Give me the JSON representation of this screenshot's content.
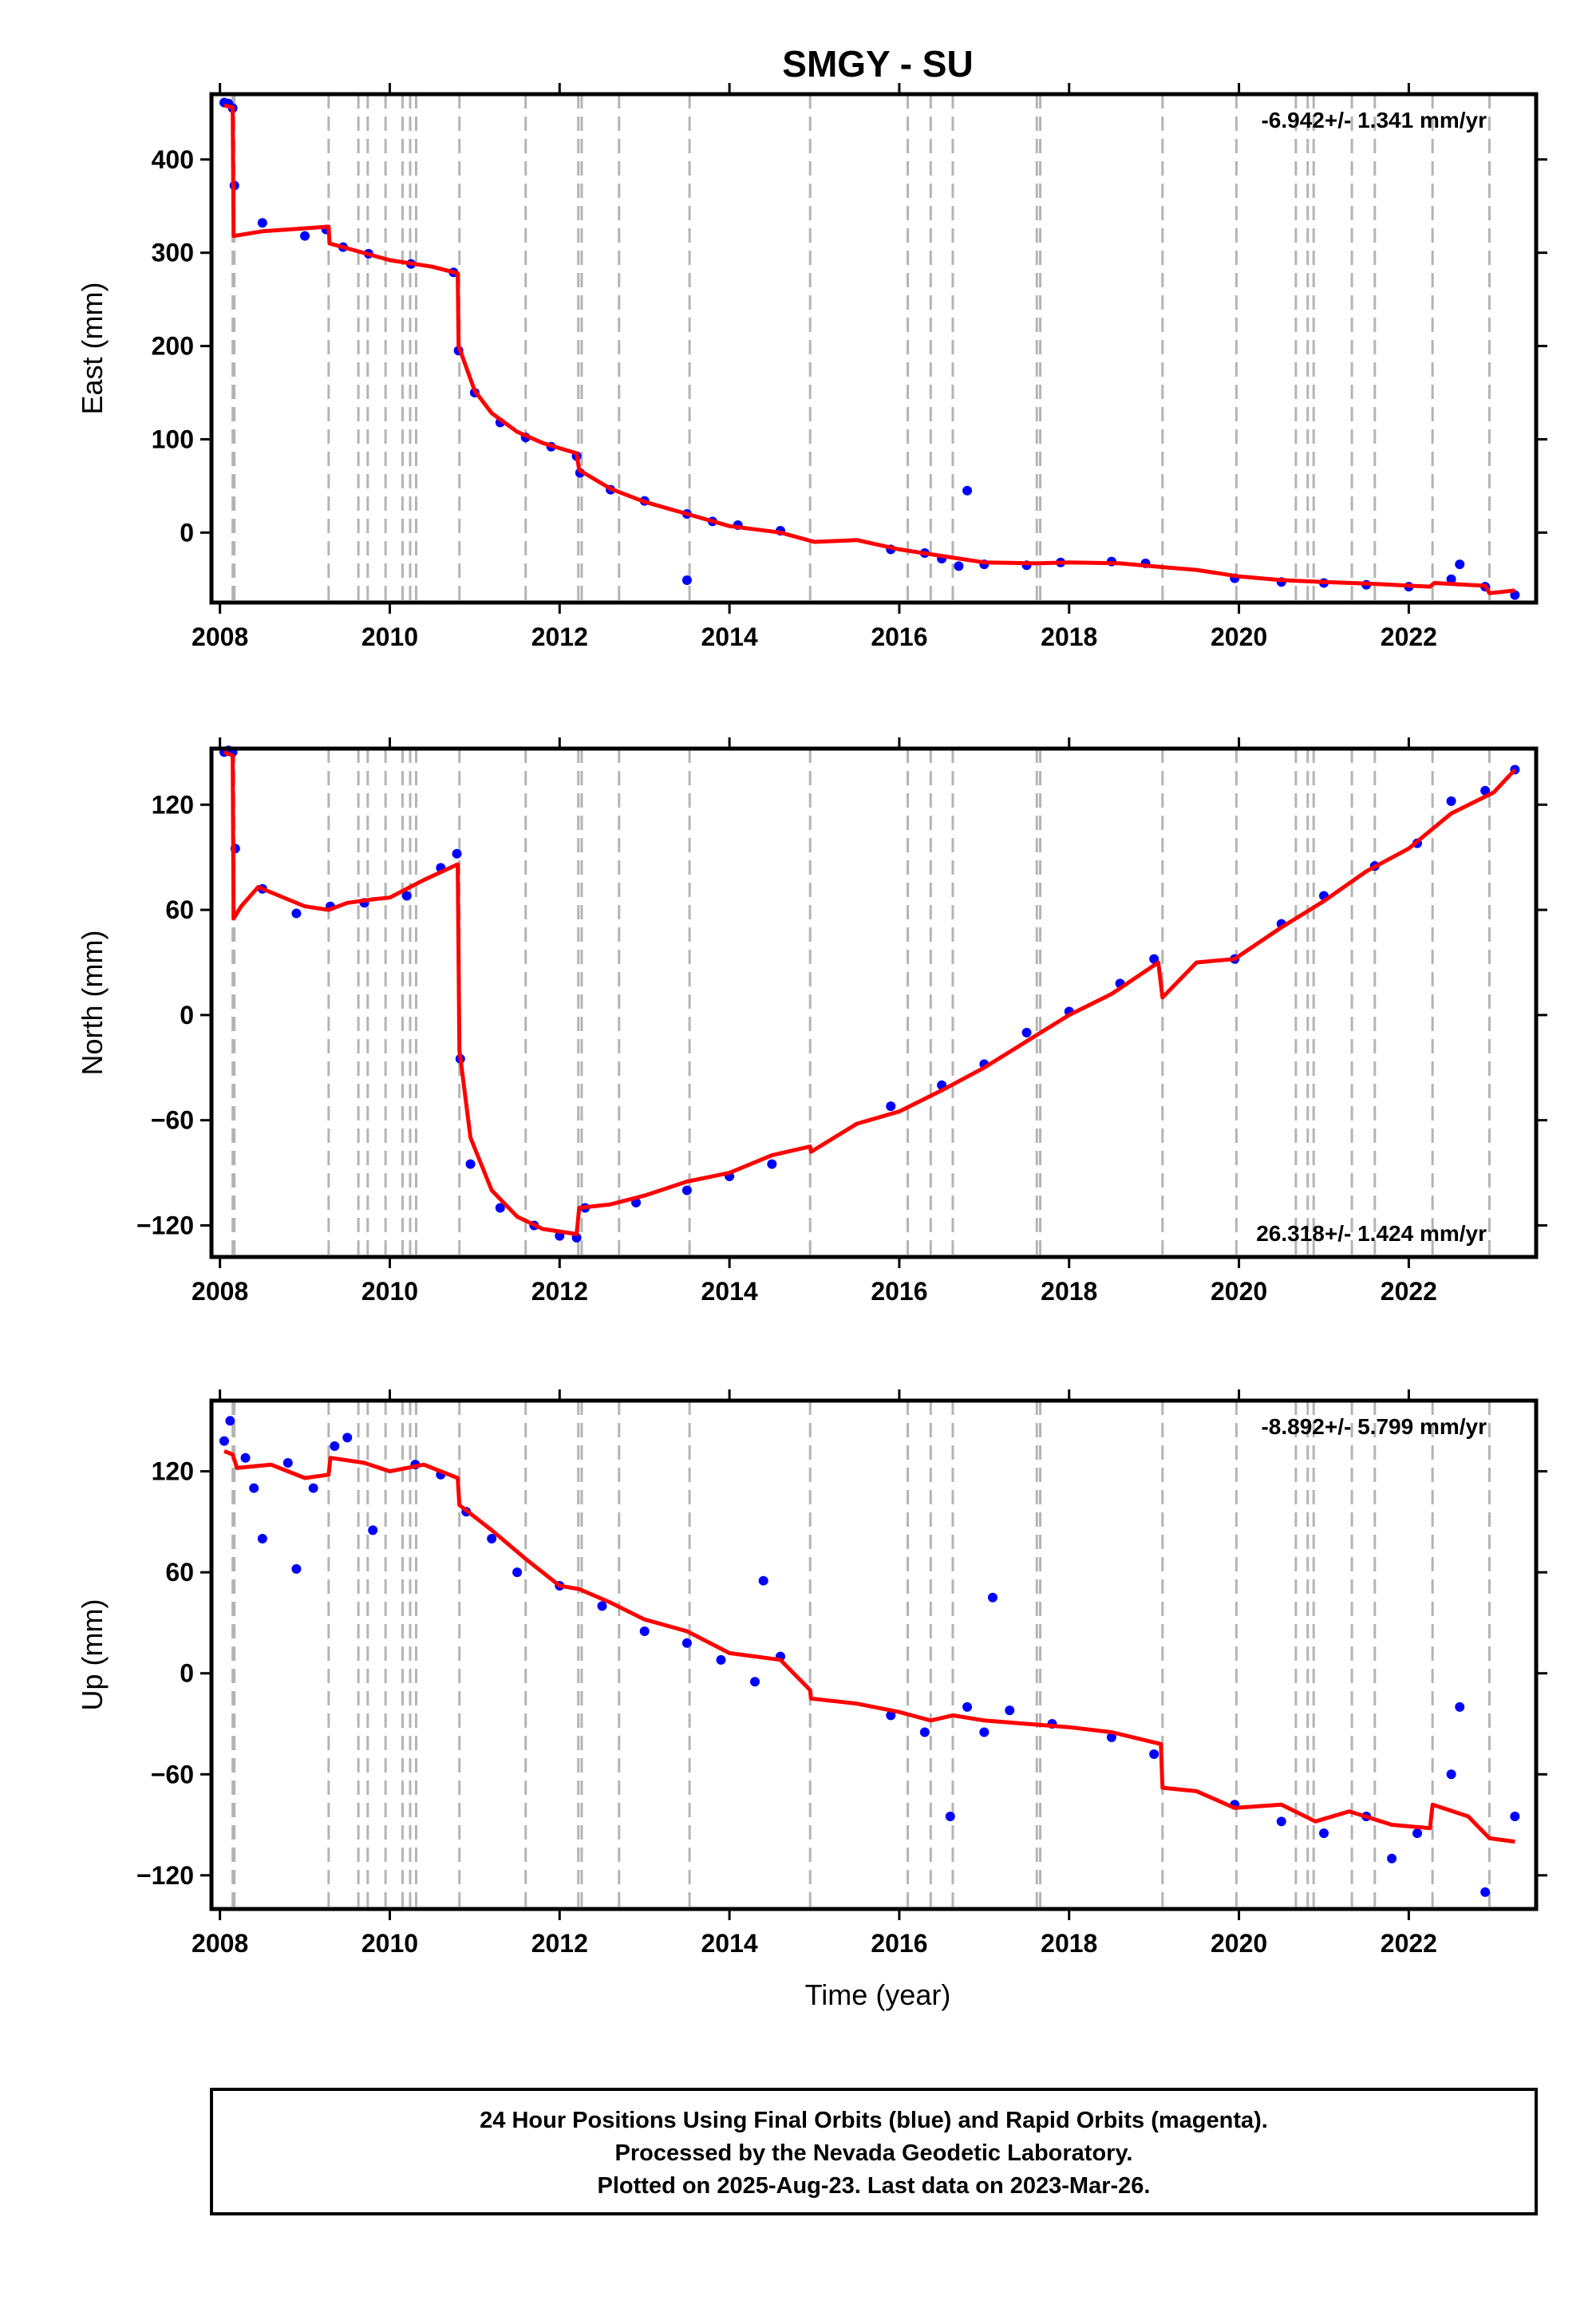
{
  "chart_data": {
    "type": "scatter",
    "title": "SMGY - SU",
    "xlabel": "Time (year)",
    "xlim": [
      2007.9,
      2023.5
    ],
    "xticks": [
      "2008",
      "2010",
      "2012",
      "2014",
      "2016",
      "2018",
      "2020",
      "2022"
    ],
    "colors": {
      "final_points": "#0000ff",
      "model": "#ff0000",
      "event_lines": "#b4b4b4",
      "frame": "#000000"
    },
    "event_lines": [
      2008.15,
      2008.17,
      2009.28,
      2009.63,
      2009.74,
      2009.95,
      2010.15,
      2010.24,
      2010.31,
      2010.82,
      2011.6,
      2012.22,
      2012.26,
      2012.7,
      2013.53,
      2014.95,
      2016.1,
      2016.37,
      2016.63,
      2017.62,
      2017.66,
      2019.1,
      2019.97,
      2020.67,
      2020.81,
      2020.88,
      2021.33,
      2021.6,
      2022.28,
      2022.95
    ],
    "panels": [
      {
        "ylabel": "East (mm)",
        "ylim": [
          -75,
          470
        ],
        "yticks": [
          "400",
          "300",
          "200",
          "100",
          "0"
        ],
        "rate": "-6.942+/- 1.341 mm/yr",
        "rate_position": "top-right",
        "model": [
          [
            2008.05,
            458
          ],
          [
            2008.15,
            456
          ],
          [
            2008.16,
            318
          ],
          [
            2008.5,
            323
          ],
          [
            2009.28,
            328
          ],
          [
            2009.29,
            310
          ],
          [
            2010.0,
            292
          ],
          [
            2010.5,
            285
          ],
          [
            2010.8,
            278
          ],
          [
            2010.81,
            200
          ],
          [
            2011.0,
            152
          ],
          [
            2011.2,
            128
          ],
          [
            2011.5,
            108
          ],
          [
            2011.8,
            96
          ],
          [
            2012.2,
            85
          ],
          [
            2012.23,
            67
          ],
          [
            2012.6,
            47
          ],
          [
            2013.0,
            33
          ],
          [
            2013.5,
            20
          ],
          [
            2014.0,
            7
          ],
          [
            2014.6,
            0
          ],
          [
            2015.0,
            -10
          ],
          [
            2015.5,
            -8
          ],
          [
            2016.0,
            -18
          ],
          [
            2016.5,
            -25
          ],
          [
            2017.0,
            -32
          ],
          [
            2017.6,
            -33
          ],
          [
            2018.0,
            -32
          ],
          [
            2018.6,
            -33
          ],
          [
            2019.1,
            -37
          ],
          [
            2019.5,
            -40
          ],
          [
            2020.0,
            -47
          ],
          [
            2020.5,
            -51
          ],
          [
            2021.0,
            -53
          ],
          [
            2021.6,
            -55
          ],
          [
            2022.25,
            -58
          ],
          [
            2022.3,
            -54
          ],
          [
            2022.9,
            -57
          ],
          [
            2022.95,
            -65
          ],
          [
            2023.25,
            -62
          ]
        ],
        "final_points": [
          [
            2008.05,
            461
          ],
          [
            2008.1,
            460
          ],
          [
            2008.15,
            455
          ],
          [
            2008.17,
            372
          ],
          [
            2008.5,
            332
          ],
          [
            2009.0,
            318
          ],
          [
            2009.25,
            325
          ],
          [
            2009.45,
            306
          ],
          [
            2009.75,
            299
          ],
          [
            2010.25,
            288
          ],
          [
            2010.75,
            279
          ],
          [
            2010.81,
            195
          ],
          [
            2011.0,
            150
          ],
          [
            2011.3,
            118
          ],
          [
            2011.6,
            102
          ],
          [
            2011.9,
            92
          ],
          [
            2012.2,
            82
          ],
          [
            2012.24,
            64
          ],
          [
            2012.6,
            46
          ],
          [
            2013.0,
            34
          ],
          [
            2013.5,
            20
          ],
          [
            2013.8,
            12
          ],
          [
            2014.1,
            8
          ],
          [
            2014.6,
            2
          ],
          [
            2015.9,
            -18
          ],
          [
            2016.3,
            -22
          ],
          [
            2016.5,
            -28
          ],
          [
            2016.7,
            -36
          ],
          [
            2016.8,
            45
          ],
          [
            2017.0,
            -34
          ],
          [
            2017.5,
            -35
          ],
          [
            2017.9,
            -32
          ],
          [
            2018.5,
            -31
          ],
          [
            2018.9,
            -33
          ],
          [
            2019.95,
            -49
          ],
          [
            2020.5,
            -53
          ],
          [
            2021.0,
            -54
          ],
          [
            2021.5,
            -56
          ],
          [
            2022.0,
            -58
          ],
          [
            2022.5,
            -50
          ],
          [
            2022.6,
            -34
          ],
          [
            2022.9,
            -58
          ],
          [
            2023.25,
            -67
          ],
          [
            2013.5,
            -51
          ]
        ]
      },
      {
        "ylabel": "North (mm)",
        "ylim": [
          -138,
          152
        ],
        "yticks": [
          "120",
          "60",
          "0",
          "−60",
          "−120"
        ],
        "rate": "26.318+/- 1.424 mm/yr",
        "rate_position": "bottom-right",
        "model": [
          [
            2008.05,
            150
          ],
          [
            2008.15,
            148
          ],
          [
            2008.16,
            55
          ],
          [
            2008.25,
            62
          ],
          [
            2008.45,
            73
          ],
          [
            2008.7,
            68
          ],
          [
            2009.0,
            62
          ],
          [
            2009.28,
            60
          ],
          [
            2009.5,
            64
          ],
          [
            2009.8,
            66
          ],
          [
            2010.0,
            67
          ],
          [
            2010.4,
            77
          ],
          [
            2010.8,
            86
          ],
          [
            2010.82,
            -20
          ],
          [
            2010.95,
            -70
          ],
          [
            2011.2,
            -100
          ],
          [
            2011.5,
            -115
          ],
          [
            2011.8,
            -122
          ],
          [
            2012.2,
            -125
          ],
          [
            2012.23,
            -110
          ],
          [
            2012.6,
            -108
          ],
          [
            2013.0,
            -103
          ],
          [
            2013.5,
            -95
          ],
          [
            2014.0,
            -90
          ],
          [
            2014.5,
            -80
          ],
          [
            2014.95,
            -75
          ],
          [
            2014.96,
            -78
          ],
          [
            2015.5,
            -62
          ],
          [
            2016.0,
            -55
          ],
          [
            2016.5,
            -43
          ],
          [
            2017.0,
            -30
          ],
          [
            2017.5,
            -15
          ],
          [
            2018.0,
            0
          ],
          [
            2018.5,
            12
          ],
          [
            2019.05,
            30
          ],
          [
            2019.1,
            10
          ],
          [
            2019.5,
            30
          ],
          [
            2019.95,
            32
          ],
          [
            2020.5,
            50
          ],
          [
            2021.0,
            65
          ],
          [
            2021.5,
            82
          ],
          [
            2022.0,
            95
          ],
          [
            2022.5,
            115
          ],
          [
            2023.0,
            127
          ],
          [
            2023.25,
            140
          ]
        ],
        "final_points": [
          [
            2008.05,
            150
          ],
          [
            2008.1,
            151
          ],
          [
            2008.15,
            150
          ],
          [
            2008.18,
            95
          ],
          [
            2008.5,
            72
          ],
          [
            2008.9,
            58
          ],
          [
            2009.3,
            62
          ],
          [
            2009.7,
            64
          ],
          [
            2010.2,
            68
          ],
          [
            2010.6,
            84
          ],
          [
            2010.79,
            92
          ],
          [
            2010.83,
            -25
          ],
          [
            2010.95,
            -85
          ],
          [
            2011.3,
            -110
          ],
          [
            2011.7,
            -120
          ],
          [
            2012.0,
            -126
          ],
          [
            2012.2,
            -127
          ],
          [
            2012.3,
            -110
          ],
          [
            2012.9,
            -107
          ],
          [
            2013.5,
            -100
          ],
          [
            2014.0,
            -92
          ],
          [
            2014.5,
            -85
          ],
          [
            2015.9,
            -52
          ],
          [
            2016.5,
            -40
          ],
          [
            2017.0,
            -28
          ],
          [
            2017.5,
            -10
          ],
          [
            2018.0,
            2
          ],
          [
            2018.6,
            18
          ],
          [
            2019.0,
            32
          ],
          [
            2019.95,
            32
          ],
          [
            2020.5,
            52
          ],
          [
            2021.0,
            68
          ],
          [
            2021.6,
            85
          ],
          [
            2022.1,
            98
          ],
          [
            2022.5,
            122
          ],
          [
            2022.9,
            128
          ],
          [
            2023.25,
            140
          ]
        ]
      },
      {
        "ylabel": "Up (mm)",
        "ylim": [
          -140,
          162
        ],
        "yticks": [
          "120",
          "60",
          "0",
          "−60",
          "−120"
        ],
        "rate": "-8.892+/- 5.799 mm/yr",
        "rate_position": "top-right",
        "model": [
          [
            2008.05,
            132
          ],
          [
            2008.15,
            130
          ],
          [
            2008.2,
            122
          ],
          [
            2008.6,
            124
          ],
          [
            2009.0,
            116
          ],
          [
            2009.28,
            118
          ],
          [
            2009.3,
            128
          ],
          [
            2009.7,
            125
          ],
          [
            2010.0,
            120
          ],
          [
            2010.4,
            124
          ],
          [
            2010.8,
            116
          ],
          [
            2010.82,
            100
          ],
          [
            2011.2,
            85
          ],
          [
            2011.6,
            68
          ],
          [
            2012.0,
            52
          ],
          [
            2012.23,
            50
          ],
          [
            2012.6,
            42
          ],
          [
            2013.0,
            32
          ],
          [
            2013.5,
            25
          ],
          [
            2014.0,
            12
          ],
          [
            2014.6,
            8
          ],
          [
            2014.95,
            -10
          ],
          [
            2014.96,
            -15
          ],
          [
            2015.5,
            -18
          ],
          [
            2016.0,
            -23
          ],
          [
            2016.37,
            -28
          ],
          [
            2016.63,
            -25
          ],
          [
            2017.0,
            -28
          ],
          [
            2017.5,
            -30
          ],
          [
            2018.0,
            -32
          ],
          [
            2018.5,
            -35
          ],
          [
            2019.08,
            -42
          ],
          [
            2019.1,
            -68
          ],
          [
            2019.5,
            -70
          ],
          [
            2019.95,
            -80
          ],
          [
            2020.5,
            -78
          ],
          [
            2020.9,
            -88
          ],
          [
            2021.3,
            -82
          ],
          [
            2021.8,
            -90
          ],
          [
            2022.25,
            -92
          ],
          [
            2022.28,
            -78
          ],
          [
            2022.7,
            -85
          ],
          [
            2022.95,
            -98
          ],
          [
            2023.25,
            -100
          ]
        ],
        "final_points": [
          [
            2008.05,
            138
          ],
          [
            2008.12,
            150
          ],
          [
            2008.3,
            128
          ],
          [
            2008.4,
            110
          ],
          [
            2008.5,
            80
          ],
          [
            2008.8,
            125
          ],
          [
            2008.9,
            62
          ],
          [
            2009.1,
            110
          ],
          [
            2009.35,
            135
          ],
          [
            2009.5,
            140
          ],
          [
            2009.8,
            85
          ],
          [
            2010.3,
            124
          ],
          [
            2010.6,
            118
          ],
          [
            2010.9,
            96
          ],
          [
            2011.2,
            80
          ],
          [
            2011.5,
            60
          ],
          [
            2012.0,
            52
          ],
          [
            2012.5,
            40
          ],
          [
            2013.0,
            25
          ],
          [
            2013.5,
            18
          ],
          [
            2013.9,
            8
          ],
          [
            2014.3,
            -5
          ],
          [
            2014.4,
            55
          ],
          [
            2014.6,
            10
          ],
          [
            2015.9,
            -25
          ],
          [
            2016.3,
            -35
          ],
          [
            2016.6,
            -85
          ],
          [
            2016.8,
            -20
          ],
          [
            2017.0,
            -35
          ],
          [
            2017.1,
            45
          ],
          [
            2017.3,
            -22
          ],
          [
            2017.8,
            -30
          ],
          [
            2018.5,
            -38
          ],
          [
            2019.0,
            -48
          ],
          [
            2019.95,
            -78
          ],
          [
            2020.5,
            -88
          ],
          [
            2021.0,
            -95
          ],
          [
            2021.5,
            -85
          ],
          [
            2021.8,
            -110
          ],
          [
            2022.1,
            -95
          ],
          [
            2022.5,
            -60
          ],
          [
            2022.6,
            -20
          ],
          [
            2022.9,
            -130
          ],
          [
            2023.25,
            -85
          ]
        ]
      }
    ]
  },
  "footer": {
    "line1": "24 Hour Positions Using Final Orbits (blue) and Rapid Orbits (magenta).",
    "line2": "Processed by the Nevada Geodetic Laboratory.",
    "line3": "Plotted on 2025-Aug-23. Last data on 2023-Mar-26."
  }
}
